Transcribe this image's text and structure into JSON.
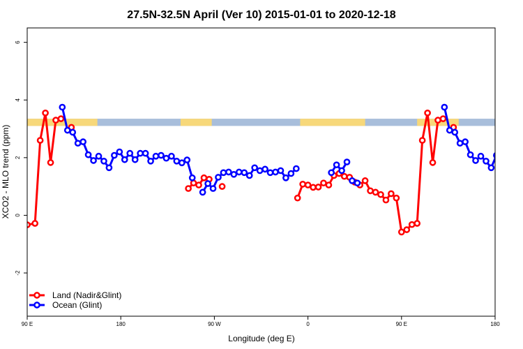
{
  "chart_data": {
    "type": "line",
    "title": "27.5N-32.5N April (Ver 10)   2015-01-01 to 2020-12-18",
    "xlabel": "Longitude (deg E)",
    "ylabel": "XCO2 - MLO trend (ppm)",
    "xlim": [
      90,
      450
    ],
    "ylim": [
      -3.5,
      6.5
    ],
    "x_ticks": [
      {
        "value": 90,
        "label": "90 E"
      },
      {
        "value": 162,
        "label": "180"
      },
      {
        "value": 234,
        "label": "90 W"
      },
      {
        "value": 306,
        "label": "0"
      },
      {
        "value": 378,
        "label": "90 E"
      },
      {
        "value": 450,
        "label": "180"
      }
    ],
    "y_ticks": [
      {
        "value": -2,
        "label": "-2"
      },
      {
        "value": 0,
        "label": "0"
      },
      {
        "value": 2,
        "label": "2"
      },
      {
        "value": 4,
        "label": "4"
      },
      {
        "value": 6,
        "label": "6"
      }
    ],
    "legend_position": "bottom-left",
    "grid": false,
    "band": {
      "y_range": [
        3.1,
        3.35
      ],
      "land_color": "#f7d87a",
      "ocean_color": "#a8bedb",
      "land_segments": [
        [
          90,
          144
        ],
        [
          208,
          232
        ],
        [
          300,
          350
        ],
        [
          390,
          422
        ]
      ]
    },
    "series": [
      {
        "name": "Land (Nadir&Glint)",
        "color": "#ff0000",
        "segments": [
          [
            [
              90,
              -0.33
            ],
            [
              96,
              -0.28
            ],
            [
              100,
              2.6
            ],
            [
              104,
              3.55
            ],
            [
              108,
              1.83
            ],
            [
              112,
              3.3
            ],
            [
              116,
              3.35
            ]
          ],
          [
            [
              124,
              3.05
            ]
          ],
          [
            [
              214,
              0.93
            ],
            [
              218,
              1.12
            ],
            [
              222,
              1.05
            ],
            [
              226,
              1.3
            ],
            [
              230,
              1.25
            ]
          ],
          [
            [
              240,
              1.0
            ]
          ],
          [
            [
              298,
              0.6
            ],
            [
              302,
              1.08
            ],
            [
              306,
              1.05
            ],
            [
              310,
              0.97
            ],
            [
              314,
              0.98
            ],
            [
              318,
              1.12
            ],
            [
              322,
              1.05
            ],
            [
              326,
              1.38
            ],
            [
              330,
              1.45
            ],
            [
              334,
              1.35
            ],
            [
              338,
              1.32
            ],
            [
              342,
              1.15
            ],
            [
              346,
              1.05
            ],
            [
              350,
              1.2
            ],
            [
              354,
              0.85
            ],
            [
              358,
              0.8
            ],
            [
              362,
              0.72
            ],
            [
              366,
              0.53
            ],
            [
              370,
              0.75
            ],
            [
              374,
              0.6
            ],
            [
              378,
              -0.58
            ],
            [
              382,
              -0.5
            ],
            [
              386,
              -0.32
            ],
            [
              390,
              -0.28
            ],
            [
              394,
              2.6
            ],
            [
              398,
              3.55
            ],
            [
              402,
              1.83
            ],
            [
              406,
              3.3
            ],
            [
              410,
              3.35
            ]
          ],
          [
            [
              418,
              3.05
            ]
          ]
        ]
      },
      {
        "name": "Ocean (Glint)",
        "color": "#0000ff",
        "segments": [
          [
            [
              117,
              3.75
            ],
            [
              121,
              2.95
            ],
            [
              125,
              2.88
            ],
            [
              129,
              2.5
            ],
            [
              133,
              2.55
            ],
            [
              137,
              2.1
            ],
            [
              141,
              1.9
            ],
            [
              145,
              2.05
            ],
            [
              149,
              1.88
            ],
            [
              153,
              1.65
            ],
            [
              157,
              2.08
            ],
            [
              161,
              2.2
            ],
            [
              165,
              1.93
            ],
            [
              169,
              2.15
            ],
            [
              173,
              1.93
            ],
            [
              177,
              2.15
            ],
            [
              181,
              2.15
            ],
            [
              185,
              1.88
            ],
            [
              189,
              2.05
            ],
            [
              193,
              2.08
            ],
            [
              197,
              1.98
            ],
            [
              201,
              2.05
            ],
            [
              205,
              1.88
            ],
            [
              209,
              1.82
            ],
            [
              213,
              1.92
            ],
            [
              217,
              1.3
            ]
          ],
          [
            [
              225,
              0.8
            ],
            [
              229,
              1.1
            ],
            [
              233,
              0.93
            ],
            [
              237,
              1.32
            ],
            [
              241,
              1.48
            ],
            [
              245,
              1.5
            ],
            [
              249,
              1.42
            ],
            [
              253,
              1.5
            ],
            [
              257,
              1.48
            ],
            [
              261,
              1.38
            ],
            [
              265,
              1.65
            ],
            [
              269,
              1.55
            ],
            [
              273,
              1.6
            ],
            [
              277,
              1.48
            ],
            [
              281,
              1.5
            ],
            [
              285,
              1.55
            ],
            [
              289,
              1.3
            ],
            [
              293,
              1.45
            ],
            [
              297,
              1.62
            ]
          ],
          [
            [
              324,
              1.48
            ],
            [
              328,
              1.75
            ],
            [
              332,
              1.55
            ],
            [
              336,
              1.85
            ]
          ],
          [
            [
              340,
              1.2
            ],
            [
              344,
              1.12
            ]
          ],
          [
            [
              411,
              3.75
            ],
            [
              415,
              2.95
            ],
            [
              419,
              2.88
            ],
            [
              423,
              2.5
            ],
            [
              427,
              2.55
            ],
            [
              431,
              2.1
            ],
            [
              435,
              1.9
            ],
            [
              439,
              2.05
            ],
            [
              443,
              1.88
            ],
            [
              447,
              1.65
            ],
            [
              451,
              2.08
            ],
            [
              455,
              2.2
            ]
          ]
        ]
      }
    ]
  }
}
